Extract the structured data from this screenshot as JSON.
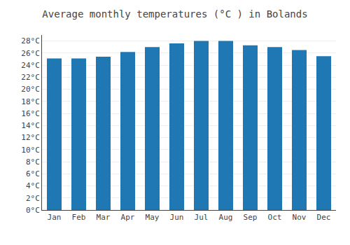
{
  "chart_data": {
    "type": "bar",
    "title": "Average monthly temperatures (°C ) in Bolands",
    "categories": [
      "Jan",
      "Feb",
      "Mar",
      "Apr",
      "May",
      "Jun",
      "Jul",
      "Aug",
      "Sep",
      "Oct",
      "Nov",
      "Dec"
    ],
    "values": [
      25.1,
      25.1,
      25.4,
      26.2,
      27.0,
      27.6,
      28.0,
      28.0,
      27.3,
      27.0,
      26.5,
      25.5
    ],
    "ylim": [
      0,
      29
    ],
    "yticks": [
      {
        "value": 0,
        "label": "0°C"
      },
      {
        "value": 2,
        "label": "2°C"
      },
      {
        "value": 4,
        "label": "4°C"
      },
      {
        "value": 6,
        "label": "6°C"
      },
      {
        "value": 8,
        "label": "8°C"
      },
      {
        "value": 10,
        "label": "10°C"
      },
      {
        "value": 12,
        "label": "12°C"
      },
      {
        "value": 14,
        "label": "14°C"
      },
      {
        "value": 16,
        "label": "16°C"
      },
      {
        "value": 18,
        "label": "18°C"
      },
      {
        "value": 20,
        "label": "20°C"
      },
      {
        "value": 22,
        "label": "22°C"
      },
      {
        "value": 24,
        "label": "24°C"
      },
      {
        "value": 26,
        "label": "26°C"
      },
      {
        "value": 28,
        "label": "28°C"
      }
    ],
    "grid": true
  }
}
